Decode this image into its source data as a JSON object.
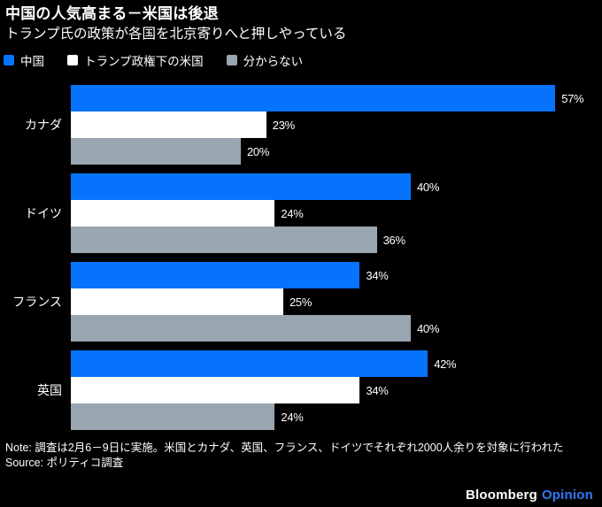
{
  "header": {
    "title": "中国の人気高まる－米国は後退",
    "subtitle": "トランプ氏の政策が各国を北京寄りへと押しやっている"
  },
  "colors": {
    "background": "#000000",
    "china_blue": "#0673fc",
    "us_white": "#ffffff",
    "unknown_gray": "#9aa5b2",
    "opinion_blue": "#3179f8",
    "text": "#ffffff"
  },
  "legend": [
    {
      "key": "china",
      "label": "中国",
      "color": "#0673fc"
    },
    {
      "key": "us-under-trump",
      "label": "トランプ政権下の米国",
      "color": "#ffffff"
    },
    {
      "key": "dont-know",
      "label": "分からない",
      "color": "#9aa5b2"
    }
  ],
  "chart_data": {
    "type": "bar",
    "orientation": "horizontal",
    "title": "中国の人気高まる－米国は後退",
    "subtitle": "トランプ氏の政策が各国を北京寄りへと押しやっている",
    "categories": [
      "カナダ",
      "ドイツ",
      "フランス",
      "英国"
    ],
    "series": [
      {
        "key": "china",
        "name": "中国",
        "color": "#0673fc",
        "values": [
          57,
          40,
          34,
          42
        ]
      },
      {
        "key": "us-under-trump",
        "name": "トランプ政権下の米国",
        "color": "#ffffff",
        "values": [
          23,
          24,
          25,
          34
        ]
      },
      {
        "key": "dont-know",
        "name": "分からない",
        "color": "#9aa5b2",
        "values": [
          20,
          36,
          40,
          24
        ]
      }
    ],
    "value_suffix": "%",
    "xlim": [
      0,
      60
    ],
    "grid": false,
    "legend_position": "top",
    "data_labels": true
  },
  "footer": {
    "note": "Note: 調査は2月6－9日に実施。米国とカナダ、英国、フランス、ドイツでそれぞれ2000人余りを対象に行われた",
    "source": "Source: ポリティコ調査",
    "brand": "Bloomberg",
    "brand_suffix": "Opinion"
  }
}
